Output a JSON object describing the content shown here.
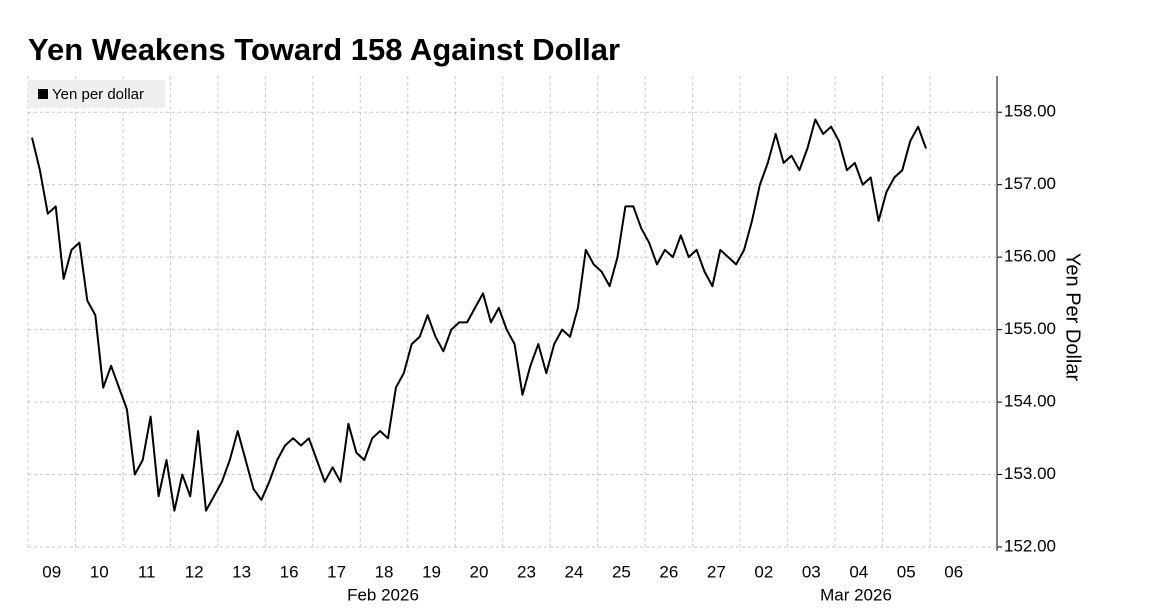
{
  "chart_data": {
    "type": "line",
    "title": "Yen Weakens Toward 158 Against Dollar",
    "y_label": "Yen Per Dollar",
    "categories": [
      "09",
      "10",
      "11",
      "12",
      "13",
      "16",
      "17",
      "18",
      "19",
      "20",
      "23",
      "24",
      "25",
      "26",
      "27",
      "02",
      "03",
      "04",
      "05",
      "06"
    ],
    "months": [
      "Feb 2026",
      "Mar 2026"
    ],
    "series": [
      {
        "name": "Yen per dollar",
        "color": "#000000",
        "values": [
          [
            157.65,
            157.2,
            156.6,
            156.7,
            155.7,
            156.1
          ],
          [
            156.2,
            155.4,
            155.2,
            154.2,
            154.5,
            154.2
          ],
          [
            153.9,
            153.0,
            153.2,
            153.8,
            152.7,
            153.2
          ],
          [
            152.5,
            153.0,
            152.7,
            153.6,
            152.5,
            152.7
          ],
          [
            152.9,
            153.2,
            153.6,
            153.2,
            152.8,
            152.65
          ],
          [
            152.9,
            153.2,
            153.4,
            153.5,
            153.4,
            153.5
          ],
          [
            153.2,
            152.9,
            153.1,
            152.9,
            153.7,
            153.3
          ],
          [
            153.2,
            153.5,
            153.6,
            153.5,
            154.2,
            154.4
          ],
          [
            154.8,
            154.9,
            155.2,
            154.9,
            154.7,
            155.0
          ],
          [
            155.1,
            155.1,
            155.3,
            155.5,
            155.1,
            155.3
          ],
          [
            155.0,
            154.8,
            154.1,
            154.5,
            154.8,
            154.4
          ],
          [
            154.8,
            155.0,
            154.9,
            155.3,
            156.1,
            155.9
          ],
          [
            155.8,
            155.6,
            156.0,
            156.7,
            156.7,
            156.4
          ],
          [
            156.2,
            155.9,
            156.1,
            156.0,
            156.3,
            156.0
          ],
          [
            156.1,
            155.8,
            155.6,
            156.1,
            156.0,
            155.9
          ],
          [
            156.1,
            156.5,
            157.0,
            157.3,
            157.7,
            157.3
          ],
          [
            157.4,
            157.2,
            157.5,
            157.9,
            157.7,
            157.8
          ],
          [
            157.6,
            157.2,
            157.3,
            157.0,
            157.1,
            156.5
          ],
          [
            156.9,
            157.1,
            157.2,
            157.6,
            157.8,
            157.5
          ],
          []
        ]
      }
    ],
    "ylim": [
      151.95,
      158.5
    ],
    "yticks": [
      {
        "value": 152,
        "label": "152.00"
      },
      {
        "value": 153,
        "label": "153.00"
      },
      {
        "value": 154,
        "label": "154.00"
      },
      {
        "value": 155,
        "label": "155.00"
      },
      {
        "value": 156,
        "label": "156.00"
      },
      {
        "value": 157,
        "label": "157.00"
      },
      {
        "value": 158,
        "label": "158.00"
      }
    ],
    "grid": true,
    "legend": "top-left"
  }
}
